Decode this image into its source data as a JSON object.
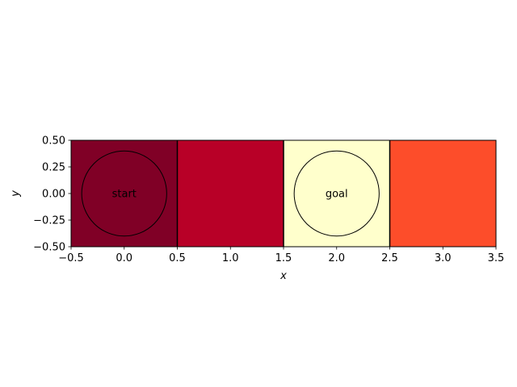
{
  "chart_data": {
    "type": "heatmap",
    "xlabel": "x",
    "ylabel": "y",
    "xlim": [
      -0.5,
      3.5
    ],
    "ylim": [
      -0.5,
      0.5
    ],
    "xticks": [
      "−0.5",
      "0.0",
      "0.5",
      "1.0",
      "1.5",
      "2.0",
      "2.5",
      "3.0",
      "3.5"
    ],
    "yticks": [
      "0.50",
      "0.25",
      "0.00",
      "−0.25",
      "−0.50"
    ],
    "grid": false,
    "cells": [
      {
        "x": 0,
        "y": 0,
        "color": "#800026"
      },
      {
        "x": 1,
        "y": 0,
        "color": "#b80027"
      },
      {
        "x": 2,
        "y": 0,
        "color": "#ffffcc"
      },
      {
        "x": 3,
        "y": 0,
        "color": "#fd4d2a"
      }
    ],
    "cell_borders_at_x": [
      0.5,
      1.5,
      2.5
    ],
    "circles": [
      {
        "cx": 0,
        "cy": 0,
        "r": 0.4,
        "label": "start"
      },
      {
        "cx": 2,
        "cy": 0,
        "r": 0.4,
        "label": "goal"
      }
    ]
  }
}
